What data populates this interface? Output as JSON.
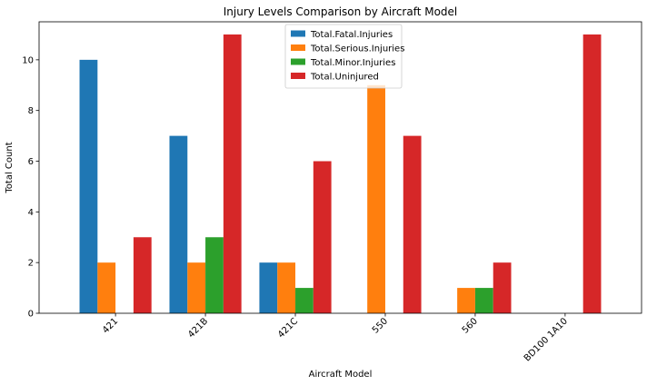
{
  "chart_data": {
    "type": "bar",
    "title": "Injury Levels Comparison by Aircraft Model",
    "xlabel": "Aircraft Model",
    "ylabel": "Total Count",
    "categories": [
      "421",
      "421B",
      "421C",
      "550",
      "560",
      "BD100 1A10"
    ],
    "ylim": [
      0,
      11.5
    ],
    "yticks": [
      0,
      2,
      4,
      6,
      8,
      10
    ],
    "grid": false,
    "legend_position": "top-center",
    "series": [
      {
        "name": "Total.Fatal.Injuries",
        "color": "#1f77b4",
        "values": [
          10,
          7,
          2,
          0,
          0,
          0
        ]
      },
      {
        "name": "Total.Serious.Injuries",
        "color": "#ff7f0e",
        "values": [
          2,
          2,
          2,
          9,
          1,
          0
        ]
      },
      {
        "name": "Total.Minor.Injuries",
        "color": "#2ca02c",
        "values": [
          0,
          3,
          1,
          0,
          1,
          0
        ]
      },
      {
        "name": "Total.Uninjured",
        "color": "#d62728",
        "values": [
          3,
          11,
          6,
          7,
          2,
          11
        ]
      }
    ]
  }
}
